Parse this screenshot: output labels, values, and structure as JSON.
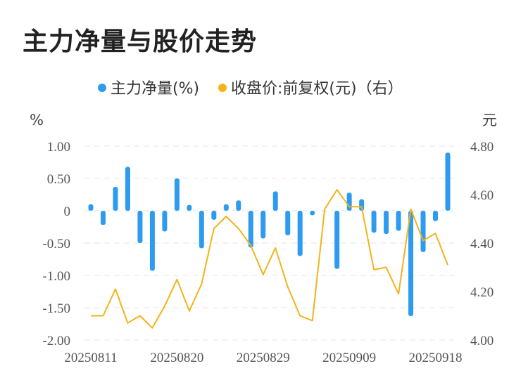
{
  "page_title": "主力净量与股价走势",
  "chart_data": {
    "type": "bar+line",
    "title": "主力净量与股价走势",
    "left_axis": {
      "unit": "%",
      "range": [
        -2.0,
        1.0
      ],
      "ticks": [
        "1.00",
        "0.50",
        "0",
        "-0.50",
        "-1.00",
        "-1.50",
        "-2.00"
      ],
      "tick_values": [
        1.0,
        0.5,
        0,
        -0.5,
        -1.0,
        -1.5,
        -2.0
      ]
    },
    "right_axis": {
      "unit": "元",
      "range": [
        4.0,
        4.8
      ],
      "ticks": [
        "4.80",
        "4.60",
        "4.40",
        "4.20",
        "4.00"
      ],
      "tick_values": [
        4.8,
        4.6,
        4.4,
        4.2,
        4.0
      ]
    },
    "x_tick_labels": [
      "20250811",
      "20250820",
      "20250829",
      "20250909",
      "20250918"
    ],
    "x_tick_index": [
      0,
      7,
      14,
      21,
      28
    ],
    "bar_color": "#2d9cf0",
    "line_color": "#f2b31b",
    "series": [
      {
        "name": "主力净量(%)",
        "type": "bar",
        "axis": "left",
        "values": [
          0.1,
          -0.22,
          0.37,
          0.68,
          -0.5,
          -0.93,
          -0.32,
          0.5,
          0.09,
          -0.58,
          -0.14,
          0.1,
          0.16,
          -0.57,
          -0.43,
          0.3,
          -0.38,
          -0.7,
          -0.07,
          0.0,
          -0.9,
          0.28,
          0.18,
          -0.34,
          -0.36,
          -0.31,
          -1.63,
          -0.64,
          -0.16,
          0.9
        ]
      },
      {
        "name": "收盘价:前复权(元)（右）",
        "type": "line",
        "axis": "right",
        "values": [
          4.1,
          4.1,
          4.21,
          4.07,
          4.1,
          4.05,
          4.14,
          4.25,
          4.12,
          4.23,
          4.46,
          4.51,
          4.46,
          4.39,
          4.27,
          4.38,
          4.22,
          4.1,
          4.08,
          4.54,
          4.62,
          4.55,
          4.55,
          4.29,
          4.3,
          4.19,
          4.54,
          4.41,
          4.44,
          4.31
        ]
      }
    ]
  }
}
